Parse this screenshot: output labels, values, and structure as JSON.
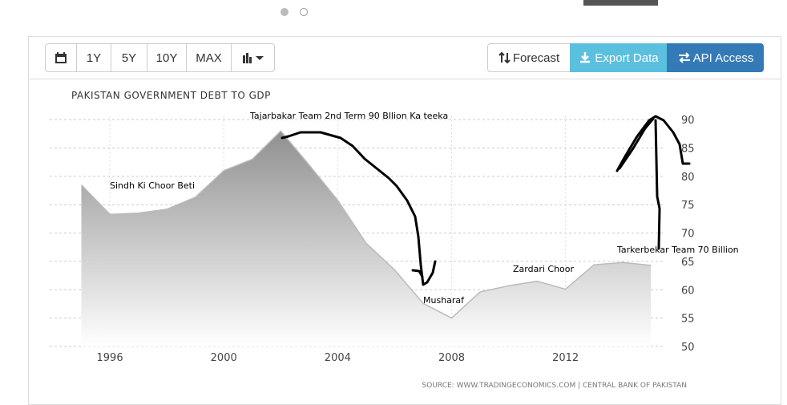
{
  "toolbar": {
    "range_buttons": [
      "1Y",
      "5Y",
      "10Y",
      "MAX"
    ],
    "actions": [
      "Forecast",
      "Export Data",
      "API Access"
    ]
  },
  "chart_data": {
    "type": "area",
    "title": "PAKISTAN GOVERNMENT DEBT TO GDP",
    "x": [
      1995,
      1996,
      1997,
      1998,
      1999,
      2000,
      2001,
      2002,
      2003,
      2004,
      2005,
      2006,
      2007,
      2008,
      2009,
      2010,
      2011,
      2012,
      2013,
      2014,
      2015
    ],
    "series": [
      {
        "color": "#888888",
        "values": [
          78.5,
          73.3,
          73.5,
          74.2,
          76.3,
          81,
          83,
          88,
          82,
          75.8,
          68.2,
          63.5,
          57.6,
          55,
          59.6,
          60.7,
          61.5,
          60.1,
          64.4,
          64.8,
          64.3
        ]
      }
    ],
    "xlim": [
      1994,
      2015.5
    ],
    "ylim": [
      50,
      92
    ],
    "xticks": [
      1996,
      2000,
      2004,
      2008,
      2012
    ],
    "yticks": [
      50,
      55,
      60,
      65,
      70,
      75,
      80,
      85,
      90
    ],
    "grid": true,
    "annotations": [
      "Sindh Ki Choor Beti",
      "Tajarbakar Team 2nd Term 90 Bllion Ka teeka",
      "Musharaf",
      "Zardari Choor",
      "Tarkerbekar Team 70 Billion"
    ],
    "source": "SOURCE: WWW.TRADINGECONOMICS.COM | CENTRAL BANK OF PAKISTAN"
  }
}
